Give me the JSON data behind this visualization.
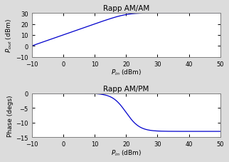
{
  "title_amam": "Rapp AM/AM",
  "title_ampm": "Rapp AM/PM",
  "xlabel_sub": "P_in (dBm)",
  "ylabel_amam": "P_out (dBm)",
  "ylabel_ampm": "Phase (degs)",
  "xlim": [
    -10,
    50
  ],
  "ylim_amam": [
    -10,
    30
  ],
  "ylim_ampm": [
    -15,
    0
  ],
  "xticks": [
    -10,
    0,
    10,
    20,
    30,
    40,
    50
  ],
  "yticks_amam": [
    -10,
    0,
    10,
    20,
    30
  ],
  "yticks_ampm": [
    -15,
    -10,
    -5,
    0
  ],
  "line_color": "#0000CC",
  "bg_color": "#DCDCDC",
  "axes_bg": "#FFFFFF",
  "rapp_p": 2.0,
  "gain_db": 10.0,
  "psat_dbm": 30.0,
  "osat_dbm": 30.0,
  "ampm_scale": 13.0,
  "ampm_p": 2.0,
  "pin_min": -10,
  "pin_max": 50,
  "n_points": 1000
}
